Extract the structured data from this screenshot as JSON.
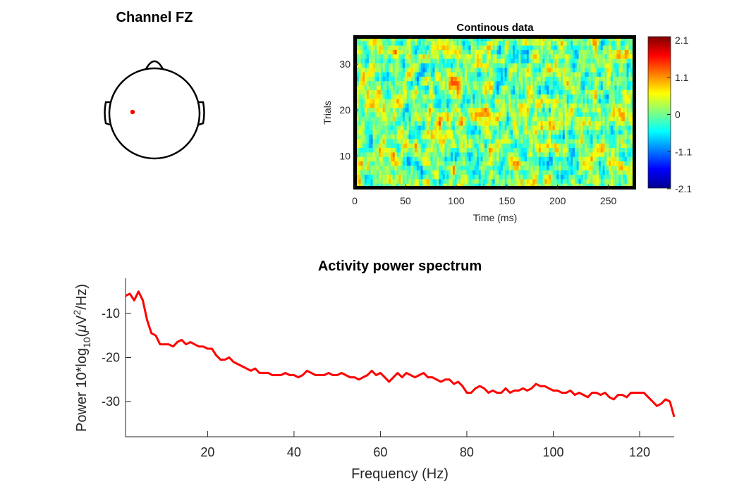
{
  "topoplot": {
    "title": "Channel FZ",
    "electrode_color": "#ff0000"
  },
  "chart_data": [
    {
      "type": "heatmap",
      "title": "Continous data",
      "xlabel": "Time (ms)",
      "ylabel": "Trials",
      "xlim": [
        0,
        276
      ],
      "ylim": [
        3,
        36
      ],
      "xticks": [
        0,
        50,
        100,
        150,
        200,
        250
      ],
      "yticks": [
        10,
        20,
        30
      ],
      "colorbar": {
        "min": -2.1,
        "max": 2.1,
        "ticks": [
          "2.1",
          "1.1",
          "0",
          "-1.1",
          "-2.1"
        ],
        "colormap": "jet"
      },
      "grid": false
    },
    {
      "type": "line",
      "title": "Activity power spectrum",
      "xlabel": "Frequency (Hz)",
      "ylabel_parts": [
        "Power 10*log",
        "10",
        "(",
        "μ",
        "V",
        "2",
        "/Hz)"
      ],
      "xlim": [
        1,
        128
      ],
      "ylim": [
        -38,
        -2
      ],
      "xticks": [
        20,
        40,
        60,
        80,
        100,
        120
      ],
      "yticks": [
        -10,
        -20,
        -30
      ],
      "grid": false,
      "series": [
        {
          "color": "#ff0000",
          "x": [
            1,
            2,
            3,
            4,
            5,
            6,
            7,
            8,
            9,
            10,
            11,
            12,
            13,
            14,
            15,
            16,
            17,
            18,
            19,
            20,
            21,
            22,
            23,
            24,
            25,
            26,
            27,
            28,
            29,
            30,
            31,
            32,
            33,
            34,
            35,
            36,
            37,
            38,
            39,
            40,
            41,
            42,
            43,
            44,
            45,
            46,
            47,
            48,
            49,
            50,
            51,
            52,
            53,
            54,
            55,
            56,
            57,
            58,
            59,
            60,
            61,
            62,
            63,
            64,
            65,
            66,
            67,
            68,
            69,
            70,
            71,
            72,
            73,
            74,
            75,
            76,
            77,
            78,
            79,
            80,
            81,
            82,
            83,
            84,
            85,
            86,
            87,
            88,
            89,
            90,
            91,
            92,
            93,
            94,
            95,
            96,
            97,
            98,
            99,
            100,
            101,
            102,
            103,
            104,
            105,
            106,
            107,
            108,
            109,
            110,
            111,
            112,
            113,
            114,
            115,
            116,
            117,
            118,
            119,
            120,
            121,
            122,
            123,
            124,
            125,
            126,
            127,
            128
          ],
          "y": [
            -6.0,
            -5.5,
            -7.0,
            -5.0,
            -7.0,
            -11.5,
            -14.5,
            -15.0,
            -17.0,
            -17.0,
            -17.0,
            -17.5,
            -16.5,
            -16.0,
            -17.0,
            -16.5,
            -17.0,
            -17.5,
            -17.5,
            -18.0,
            -18.0,
            -19.5,
            -20.5,
            -20.5,
            -20.0,
            -21.0,
            -21.5,
            -22.0,
            -22.5,
            -23.0,
            -22.5,
            -23.5,
            -23.5,
            -23.5,
            -24.0,
            -24.0,
            -24.0,
            -23.5,
            -24.0,
            -24.0,
            -24.5,
            -24.0,
            -23.0,
            -23.5,
            -24.0,
            -24.0,
            -24.0,
            -23.5,
            -24.0,
            -24.0,
            -23.5,
            -24.0,
            -24.5,
            -24.5,
            -25.0,
            -24.5,
            -24.0,
            -23.0,
            -24.0,
            -23.5,
            -24.5,
            -25.5,
            -24.5,
            -23.5,
            -24.5,
            -23.5,
            -24.0,
            -24.5,
            -24.0,
            -23.5,
            -24.5,
            -24.5,
            -25.0,
            -25.5,
            -25.0,
            -25.0,
            -26.0,
            -25.5,
            -26.5,
            -28.0,
            -28.0,
            -27.0,
            -26.5,
            -27.0,
            -28.0,
            -27.5,
            -28.0,
            -28.0,
            -27.0,
            -28.0,
            -27.5,
            -27.5,
            -27.0,
            -27.5,
            -27.0,
            -26.0,
            -26.5,
            -26.5,
            -27.0,
            -27.5,
            -27.5,
            -28.0,
            -28.0,
            -27.5,
            -28.5,
            -28.0,
            -28.5,
            -29.0,
            -28.0,
            -28.0,
            -28.5,
            -28.0,
            -29.0,
            -29.5,
            -28.5,
            -28.5,
            -29.0,
            -28.0,
            -28.0,
            -28.0,
            -28.0,
            -29.0,
            -30.0,
            -31.0,
            -30.5,
            -29.5,
            -30.0,
            -33.5
          ]
        }
      ]
    }
  ]
}
